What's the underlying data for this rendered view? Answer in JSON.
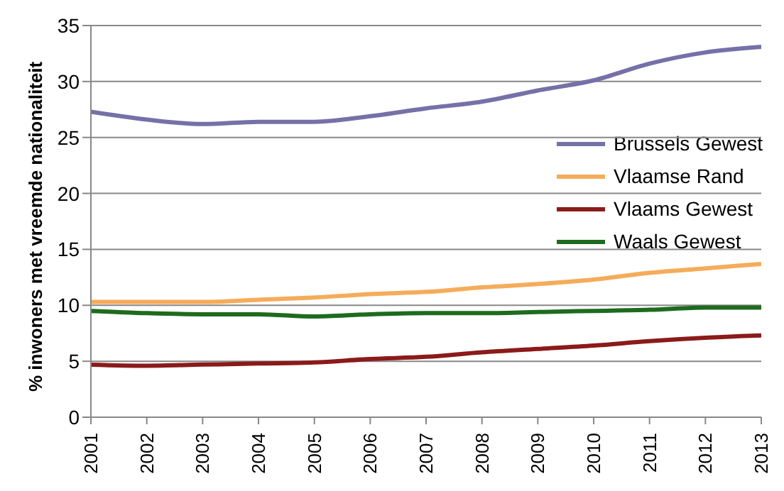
{
  "chart_data": {
    "type": "line",
    "ylabel": "% inwoners met vreemde nationaliteit",
    "x": [
      2001,
      2002,
      2003,
      2004,
      2005,
      2006,
      2007,
      2008,
      2009,
      2010,
      2011,
      2012,
      2013
    ],
    "xlim": [
      2001,
      2013
    ],
    "xticks": [
      2001,
      2002,
      2003,
      2004,
      2005,
      2006,
      2007,
      2008,
      2009,
      2010,
      2011,
      2012,
      2013
    ],
    "ylim": [
      0,
      35
    ],
    "yticks": [
      0,
      5,
      10,
      15,
      20,
      25,
      30,
      35
    ],
    "grid": "y",
    "legend": "right",
    "marker": "none",
    "line_style": "solid",
    "series": [
      {
        "name": "Brussels Gewest",
        "color": "#7571a8",
        "values": [
          27.3,
          26.6,
          26.2,
          26.4,
          26.4,
          26.9,
          27.6,
          28.2,
          29.2,
          30.1,
          31.6,
          32.6,
          33.1
        ]
      },
      {
        "name": "Vlaamse Rand",
        "color": "#f5ac5a",
        "values": [
          10.3,
          10.3,
          10.3,
          10.5,
          10.7,
          11.0,
          11.2,
          11.6,
          11.9,
          12.3,
          12.9,
          13.3,
          13.7
        ]
      },
      {
        "name": "Vlaams Gewest",
        "color": "#8b1a1a",
        "values": [
          4.7,
          4.6,
          4.7,
          4.8,
          4.9,
          5.2,
          5.4,
          5.8,
          6.1,
          6.4,
          6.8,
          7.1,
          7.3
        ]
      },
      {
        "name": "Waals Gewest",
        "color": "#1e6b1e",
        "values": [
          9.5,
          9.3,
          9.2,
          9.2,
          9.0,
          9.2,
          9.3,
          9.3,
          9.4,
          9.5,
          9.6,
          9.8,
          9.8
        ]
      }
    ]
  }
}
